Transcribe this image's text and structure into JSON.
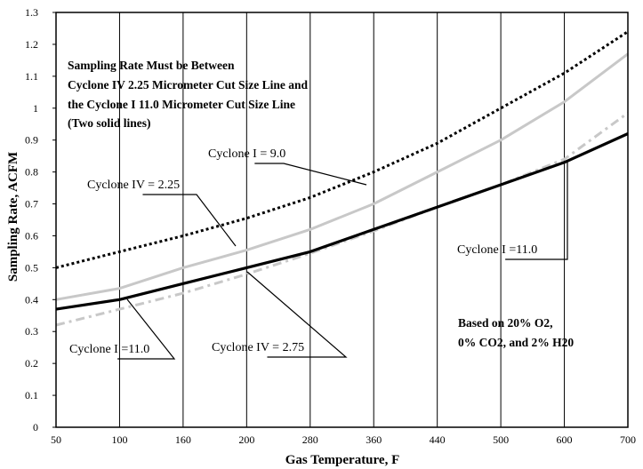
{
  "chart_data": {
    "type": "line",
    "xlabel": "Gas Temperature, F",
    "ylabel": "Sampling Rate, ACFM",
    "x_categories": [
      "50",
      "100",
      "160",
      "200",
      "280",
      "360",
      "440",
      "500",
      "600",
      "700"
    ],
    "ylim": [
      0,
      1.3
    ],
    "y_ticks": [
      "0",
      "0.1",
      "0.2",
      "0.3",
      "0.4",
      "0.5",
      "0.6",
      "0.7",
      "0.8",
      "0.9",
      "1",
      "1.1",
      "1.2",
      "1.3"
    ],
    "grid": "vertical",
    "series": [
      {
        "name": "Cyclone I = 9.0",
        "style": "dotted",
        "color": "#000000",
        "values": [
          0.5,
          0.55,
          0.6,
          0.655,
          0.72,
          0.8,
          0.89,
          1.0,
          1.11,
          1.24
        ]
      },
      {
        "name": "Cyclone IV = 2.25",
        "style": "solid-gray",
        "color": "#c8c8c8",
        "values": [
          0.4,
          0.435,
          0.5,
          0.555,
          0.62,
          0.7,
          0.8,
          0.9,
          1.02,
          1.17
        ]
      },
      {
        "name": "Cyclone I =11.0",
        "style": "solid-thick",
        "color": "#000000",
        "values": [
          0.37,
          0.4,
          0.45,
          0.5,
          0.55,
          0.62,
          0.69,
          0.76,
          0.83,
          0.92
        ]
      },
      {
        "name": "Cyclone IV = 2.75",
        "style": "dash-dot-gray",
        "color": "#c8c8c8",
        "values": [
          0.32,
          0.37,
          0.42,
          0.48,
          0.545,
          0.615,
          0.69,
          0.76,
          0.84,
          0.985
        ]
      }
    ],
    "note_lines": [
      "Sampling Rate Must be Between",
      "Cyclone IV 2.25 Micrometer Cut Size Line and",
      "the Cyclone I 11.0 Micrometer Cut Size Line",
      "(Two solid lines)"
    ],
    "basis_lines": [
      "Based on 20% O2,",
      "0% CO2, and 2% H20"
    ],
    "callouts": [
      {
        "label": "Cyclone I = 9.0",
        "series": 0
      },
      {
        "label": "Cyclone IV = 2.25",
        "series": 1
      },
      {
        "label": "Cyclone I =11.0",
        "series": 2
      },
      {
        "label": "Cyclone I =11.0",
        "series": 2
      },
      {
        "label": "Cyclone IV = 2.75",
        "series": 3
      }
    ]
  }
}
